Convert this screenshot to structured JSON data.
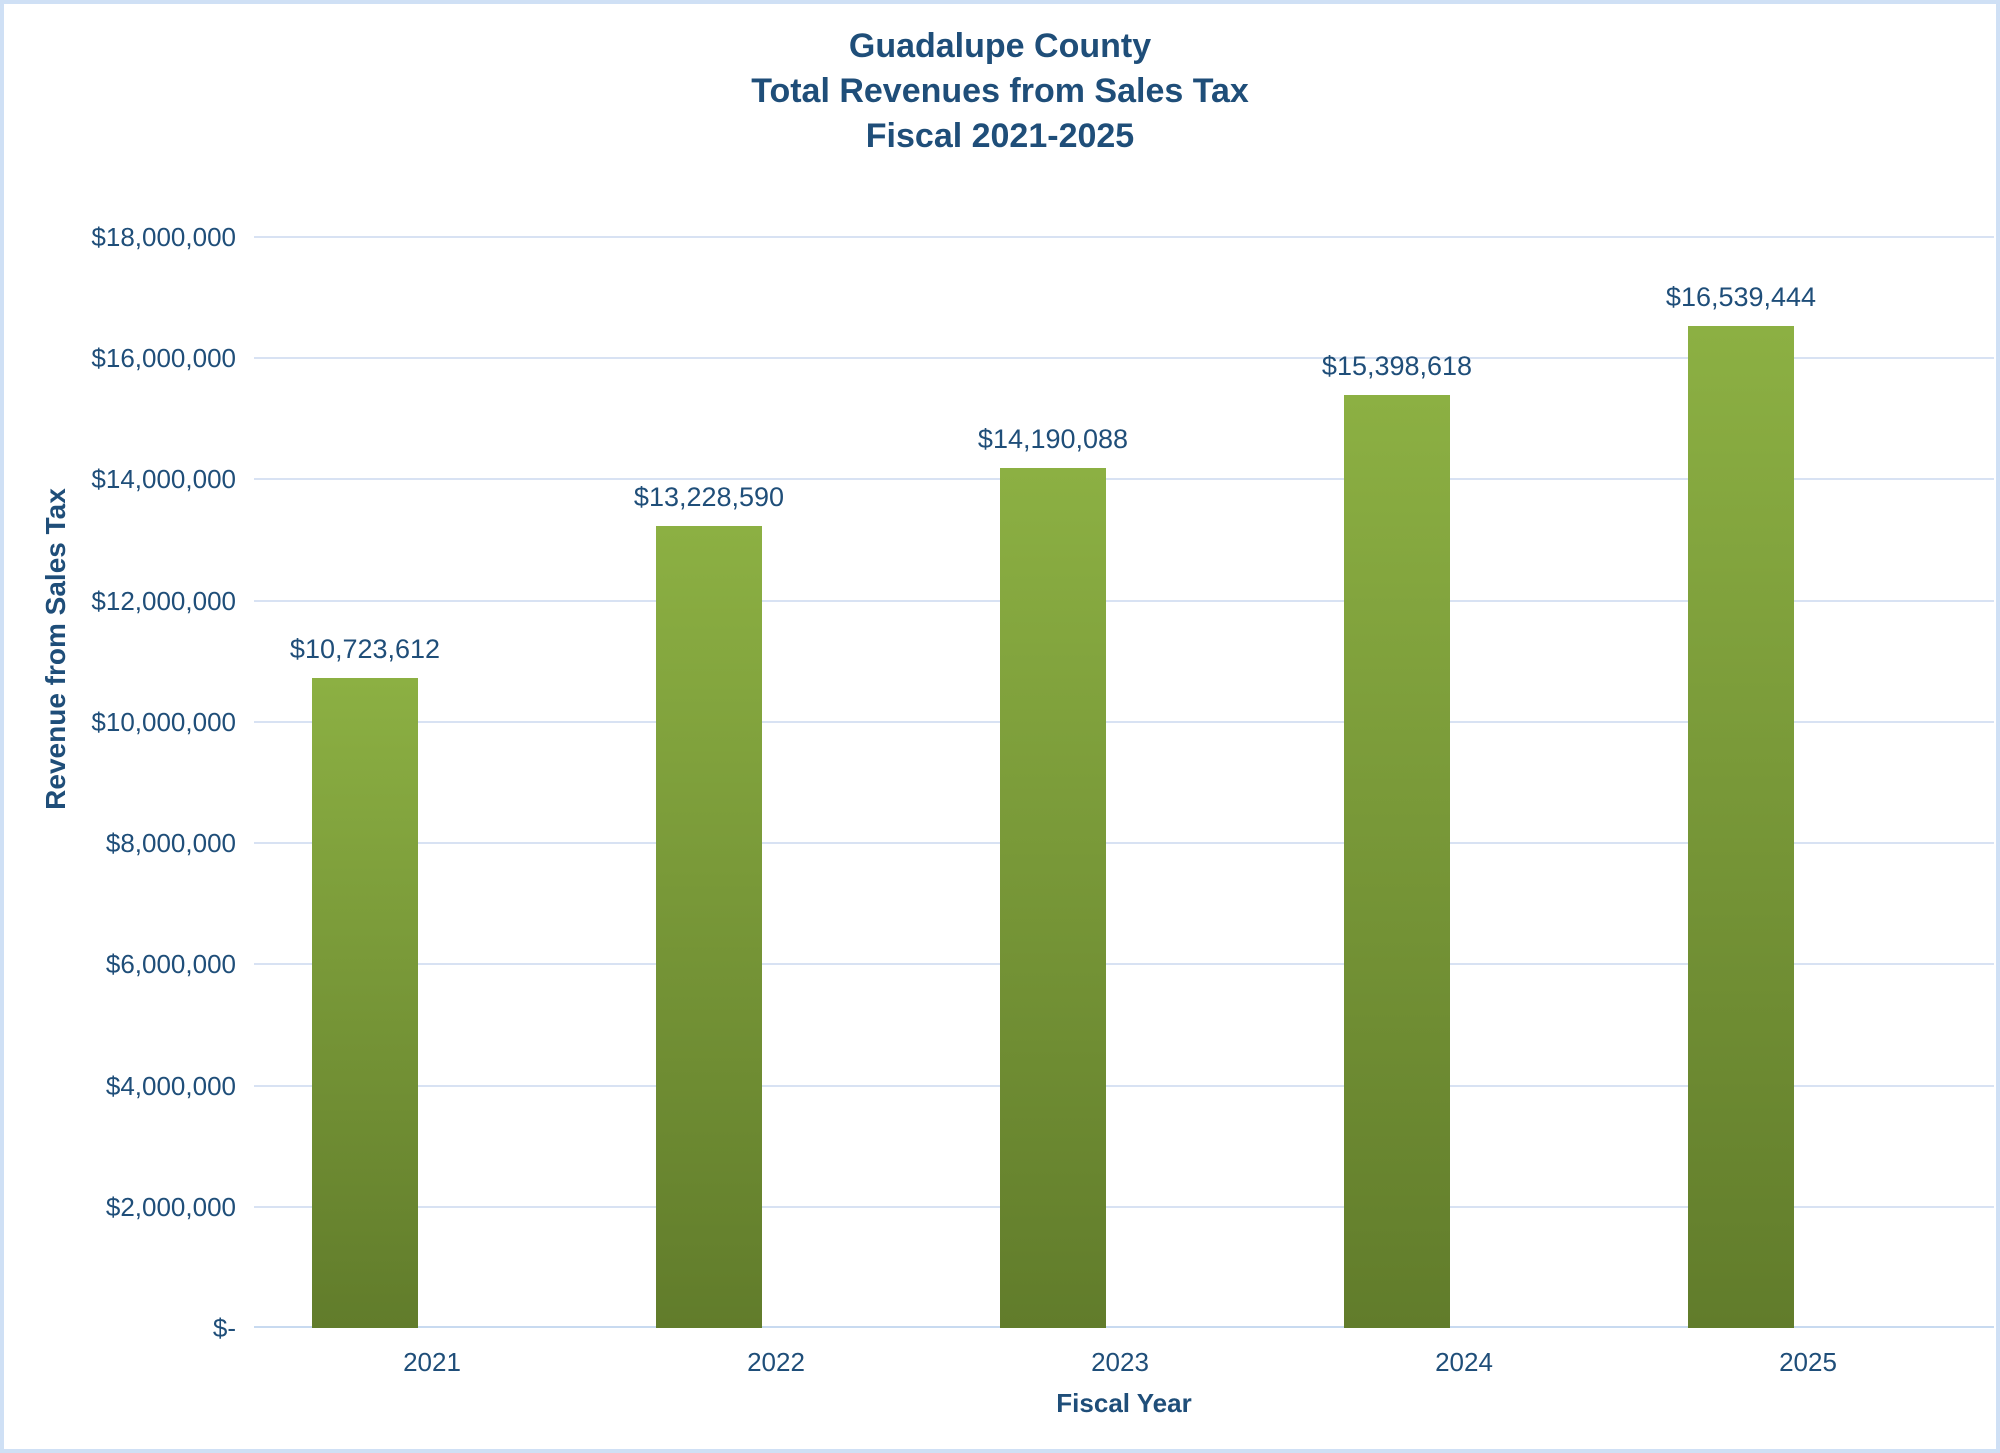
{
  "chart_data": {
    "type": "bar",
    "title_lines": [
      "Guadalupe County",
      "Total Revenues from Sales Tax",
      "Fiscal 2021-2025"
    ],
    "xlabel": "Fiscal Year",
    "ylabel": "Revenue from Sales Tax",
    "categories": [
      "2021",
      "2022",
      "2023",
      "2024",
      "2025"
    ],
    "values": [
      10723612,
      13228590,
      14190088,
      15398618,
      16539444
    ],
    "data_labels": [
      "$10,723,612",
      "$13,228,590",
      "$14,190,088",
      "$15,398,618",
      "$16,539,444"
    ],
    "ylim": [
      0,
      18000000
    ],
    "ytick_step": 2000000,
    "ytick_labels": [
      "$-",
      "$2,000,000",
      "$4,000,000",
      "$6,000,000",
      "$8,000,000",
      "$10,000,000",
      "$12,000,000",
      "$14,000,000",
      "$16,000,000",
      "$18,000,000"
    ],
    "grid": true,
    "legend": "none",
    "colors": {
      "text_blue": "#1F4E79",
      "gridline": "#D8E2F3",
      "axis_line": "#C8DAF0",
      "frame_border": "#CFE0F5",
      "bar_top": "#8CB043",
      "bar_bottom": "#617C2B",
      "background": "#FFFFFF"
    }
  }
}
